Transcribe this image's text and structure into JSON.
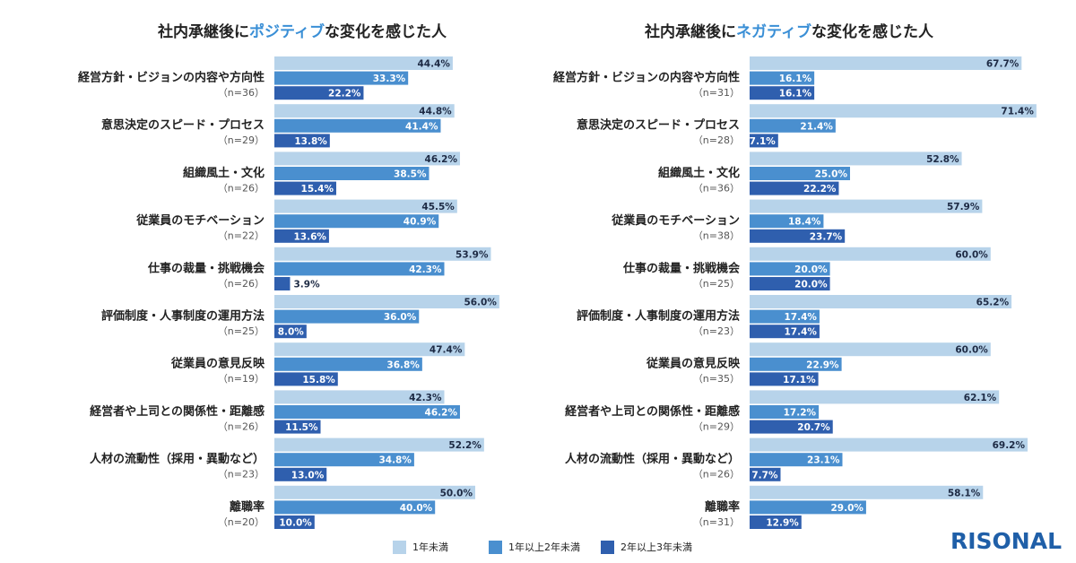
{
  "chart_data": [
    {
      "type": "hbar",
      "title": [
        "社内承継後に",
        "ポジティブ",
        "な変化を感じた人"
      ],
      "title_highlight_color": "#3a8fd6",
      "categories": [
        "経営方針・ビジョンの内容や方向性",
        "意思決定のスピード・プロセス",
        "組織風土・文化",
        "従業員のモチベーション",
        "仕事の裁量・挑戦機会",
        "評価制度・人事制度の運用方法",
        "従業員の意見反映",
        "経営者や上司との関係性・距離感",
        "人材の流動性（採用・異動など）",
        "離職率"
      ],
      "n_labels": [
        "（n=36）",
        "（n=29）",
        "（n=26）",
        "（n=22）",
        "（n=26）",
        "（n=25）",
        "（n=19）",
        "（n=26）",
        "（n=23）",
        "（n=20）"
      ],
      "series": [
        {
          "name": "1年未満",
          "color": "#b7d3ea",
          "values": [
            44.4,
            44.8,
            46.2,
            45.5,
            53.9,
            56.0,
            47.4,
            42.3,
            52.2,
            50.0
          ],
          "value_labels": [
            "44.4%",
            "44.8%",
            "46.2%",
            "45.5%",
            "53.9%",
            "56.0%",
            "47.4%",
            "42.3%",
            "52.2%",
            "50.0%"
          ]
        },
        {
          "name": "1年以上2年未満",
          "color": "#4a8fcf",
          "values": [
            33.3,
            41.4,
            38.5,
            40.9,
            42.3,
            36.0,
            36.8,
            46.2,
            34.8,
            40.0
          ],
          "value_labels": [
            "33.3%",
            "41.4%",
            "38.5%",
            "40.9%",
            "42.3%",
            "36.0%",
            "36.8%",
            "46.2%",
            "34.8%",
            "40.0%"
          ]
        },
        {
          "name": "2年以上3年未満",
          "color": "#2f5fae",
          "values": [
            22.2,
            13.8,
            15.4,
            13.6,
            3.9,
            8.0,
            15.8,
            11.5,
            13.0,
            10.0
          ],
          "value_labels": [
            "22.2%",
            "13.8%",
            "15.4%",
            "13.6%",
            "3.9%",
            "8.0%",
            "15.8%",
            "11.5%",
            "13.0%",
            "10.0%"
          ]
        }
      ]
    },
    {
      "type": "hbar",
      "title": [
        "社内承継後に",
        "ネガティブ",
        "な変化を感じた人"
      ],
      "title_highlight_color": "#3a8fd6",
      "categories": [
        "経営方針・ビジョンの内容や方向性",
        "意思決定のスピード・プロセス",
        "組織風土・文化",
        "従業員のモチベーション",
        "仕事の裁量・挑戦機会",
        "評価制度・人事制度の運用方法",
        "従業員の意見反映",
        "経営者や上司との関係性・距離感",
        "人材の流動性（採用・異動など）",
        "離職率"
      ],
      "n_labels": [
        "（n=31）",
        "（n=28）",
        "（n=36）",
        "（n=38）",
        "（n=25）",
        "（n=23）",
        "（n=35）",
        "（n=29）",
        "（n=26）",
        "（n=31）"
      ],
      "series": [
        {
          "color": "#b7d3ea",
          "values": [
            67.7,
            71.4,
            52.8,
            57.9,
            60.0,
            65.2,
            60.0,
            62.1,
            69.2,
            58.1
          ],
          "value_labels": [
            "67.7%",
            "71.4%",
            "52.8%",
            "57.9%",
            "60.0%",
            "65.2%",
            "60.0%",
            "62.1%",
            "69.2%",
            "58.1%"
          ]
        },
        {
          "color": "#4a8fcf",
          "values": [
            16.1,
            21.4,
            25.0,
            18.4,
            20.0,
            17.4,
            22.9,
            17.2,
            23.1,
            29.0
          ],
          "value_labels": [
            "16.1%",
            "21.4%",
            "25.0%",
            "18.4%",
            "20.0%",
            "17.4%",
            "22.9%",
            "17.2%",
            "23.1%",
            "29.0%"
          ]
        },
        {
          "color": "#2f5fae",
          "values": [
            16.1,
            7.1,
            22.2,
            23.7,
            20.0,
            17.4,
            17.1,
            20.7,
            7.7,
            12.9
          ],
          "value_labels": [
            "16.1%",
            "7.1%",
            "22.2%",
            "23.7%",
            "20.0%",
            "17.4%",
            "17.1%",
            "20.7%",
            "7.7%",
            "12.9%"
          ]
        }
      ]
    }
  ],
  "logo": "RISONAL"
}
